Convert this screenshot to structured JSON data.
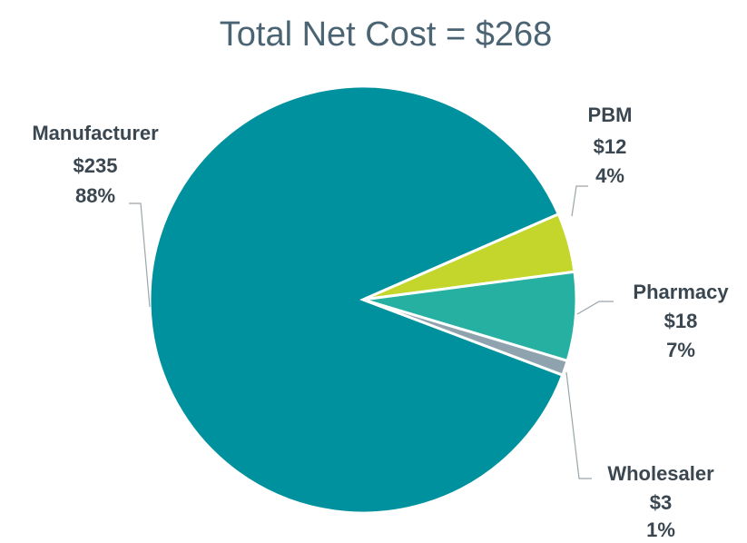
{
  "chart_data": {
    "type": "pie",
    "title": "Total Net Cost = $268",
    "categories": [
      "Manufacturer",
      "PBM",
      "Pharmacy",
      "Wholesaler"
    ],
    "values": [
      235,
      12,
      18,
      3
    ],
    "value_labels": [
      "$235",
      "$12",
      "$18",
      "$3"
    ],
    "percents": [
      88,
      4,
      7,
      1
    ],
    "percent_labels": [
      "88%",
      "4%",
      "7%",
      "1%"
    ],
    "colors": [
      "#00919e",
      "#c4d52b",
      "#26b0a2",
      "#8fa3ae"
    ]
  }
}
